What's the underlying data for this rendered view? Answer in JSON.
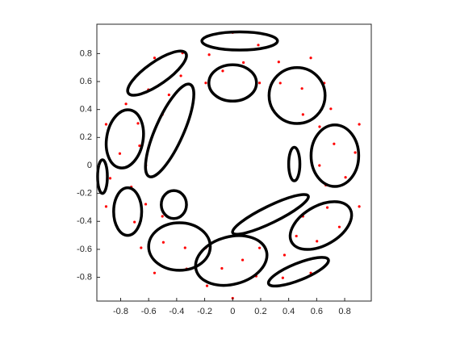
{
  "chart_data": {
    "type": "scatter",
    "x": [
      0.62,
      0.875,
      0.724,
      0.904,
      0.621,
      0.701,
      0.502,
      0.654,
      0.495,
      0.558,
      0.34,
      0.329,
      0.192,
      0.183,
      0.077,
      0,
      -0.071,
      -0.168,
      -0.192,
      -0.358,
      -0.37,
      -0.558,
      -0.455,
      -0.602,
      -0.502,
      -0.762,
      -0.676,
      -0.904,
      -0.665,
      -0.806,
      -0.62,
      -0.875,
      -0.724,
      -0.904,
      -0.621,
      -0.701,
      -0.502,
      -0.654,
      -0.495,
      -0.558,
      -0.34,
      -0.329,
      -0.192,
      -0.183,
      -0.077,
      0,
      0.071,
      0.168,
      0.192,
      0.358,
      0.37,
      0.558,
      0.455,
      0.602,
      0.502,
      0.762,
      0.676,
      0.904,
      0.665,
      0.806
    ],
    "values": [
      0,
      0.092,
      0.154,
      0.294,
      0.277,
      0.405,
      0.364,
      0.589,
      0.55,
      0.769,
      0.589,
      0.74,
      0.59,
      0.861,
      0.736,
      0.95,
      0.676,
      0.792,
      0.59,
      0.804,
      0.641,
      0.769,
      0.505,
      0.542,
      0.364,
      0.44,
      0.301,
      0.294,
      0.141,
      0.085,
      0,
      -0.092,
      -0.154,
      -0.294,
      -0.277,
      -0.405,
      -0.364,
      -0.589,
      -0.55,
      -0.769,
      -0.589,
      -0.74,
      -0.59,
      -0.861,
      -0.736,
      -0.95,
      -0.676,
      -0.792,
      -0.59,
      -0.804,
      -0.641,
      -0.769,
      -0.505,
      -0.542,
      -0.364,
      -0.44,
      -0.301,
      -0.294,
      -0.141,
      -0.085
    ],
    "color": "#ff0000",
    "ellipses": [
      {
        "cx": 0.05,
        "cy": 0.89,
        "rx": 0.27,
        "ry": 0.065,
        "angle": 0
      },
      {
        "cx": -0.54,
        "cy": 0.66,
        "rx": 0.25,
        "ry": 0.08,
        "angle": 35
      },
      {
        "cx": 0,
        "cy": 0.59,
        "rx": 0.17,
        "ry": 0.13,
        "angle": 0
      },
      {
        "cx": 0.46,
        "cy": 0.5,
        "rx": 0.2,
        "ry": 0.2,
        "angle": 0
      },
      {
        "cx": -0.45,
        "cy": 0.25,
        "rx": 0.36,
        "ry": 0.1,
        "angle": 66
      },
      {
        "cx": -0.77,
        "cy": 0.19,
        "rx": 0.13,
        "ry": 0.21,
        "angle": -10
      },
      {
        "cx": 0.73,
        "cy": 0.07,
        "rx": 0.17,
        "ry": 0.22,
        "angle": 0
      },
      {
        "cx": 0.44,
        "cy": 0.01,
        "rx": 0.04,
        "ry": 0.12,
        "angle": 0
      },
      {
        "cx": -0.93,
        "cy": -0.08,
        "rx": 0.035,
        "ry": 0.12,
        "angle": 0
      },
      {
        "cx": -0.75,
        "cy": -0.33,
        "rx": 0.1,
        "ry": 0.17,
        "angle": 0
      },
      {
        "cx": -0.42,
        "cy": -0.28,
        "rx": 0.09,
        "ry": 0.1,
        "angle": 0
      },
      {
        "cx": 0.27,
        "cy": -0.35,
        "rx": 0.3,
        "ry": 0.06,
        "angle": 26
      },
      {
        "cx": 0.63,
        "cy": -0.43,
        "rx": 0.24,
        "ry": 0.14,
        "angle": 30
      },
      {
        "cx": -0.38,
        "cy": -0.58,
        "rx": 0.22,
        "ry": 0.17,
        "angle": 0
      },
      {
        "cx": -0.01,
        "cy": -0.68,
        "rx": 0.26,
        "ry": 0.17,
        "angle": 15
      },
      {
        "cx": 0.47,
        "cy": -0.76,
        "rx": 0.23,
        "ry": 0.06,
        "angle": 22
      }
    ],
    "xlim": [
      -0.97,
      0.99
    ],
    "ylim": [
      -0.97,
      1.01
    ],
    "xticks": [
      -0.8,
      -0.6,
      -0.4,
      -0.2,
      0,
      0.2,
      0.4,
      0.6,
      0.8
    ],
    "yticks": [
      -0.8,
      -0.6,
      -0.4,
      -0.2,
      0,
      0.2,
      0.4,
      0.6,
      0.8
    ],
    "grid": false
  }
}
